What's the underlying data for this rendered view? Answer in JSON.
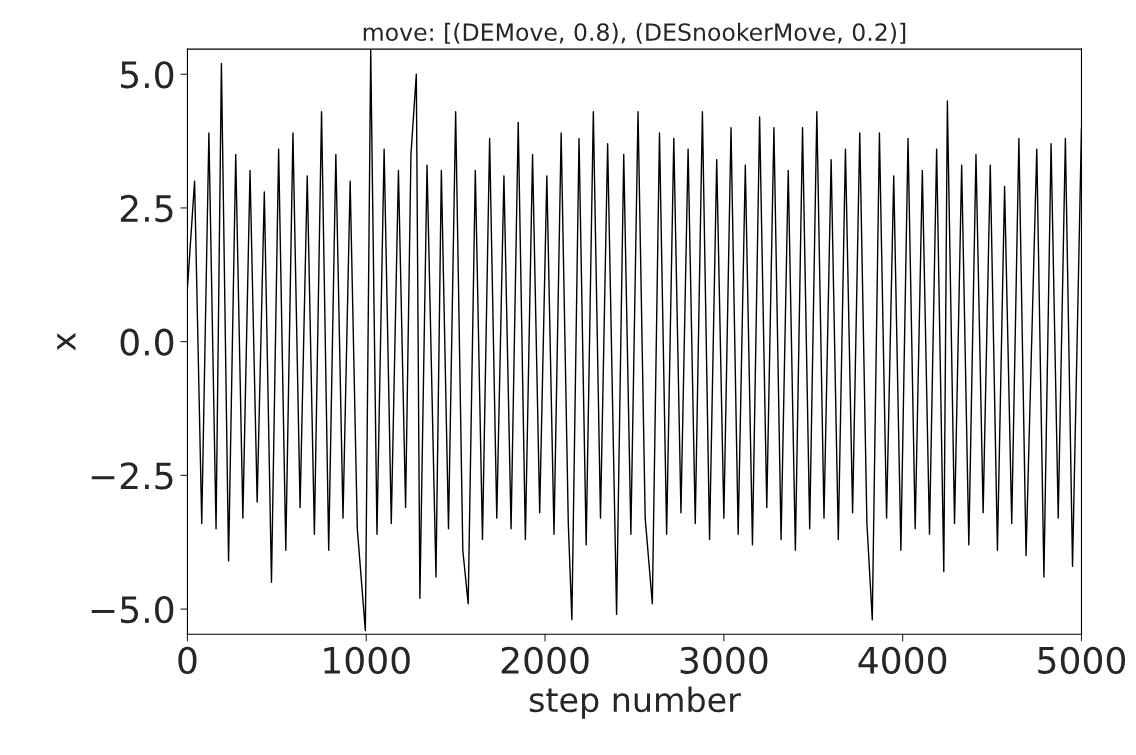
{
  "chart_data": {
    "type": "line",
    "title": "move: [(DEMove, 0.8), (DESnookerMove, 0.2)]",
    "xlabel": "step number",
    "ylabel": "x",
    "x": [
      0,
      40,
      80,
      120,
      160,
      190,
      230,
      270,
      310,
      350,
      390,
      430,
      470,
      510,
      550,
      590,
      630,
      670,
      710,
      750,
      790,
      830,
      870,
      910,
      950,
      995,
      1025,
      1060,
      1100,
      1140,
      1180,
      1220,
      1250,
      1280,
      1300,
      1340,
      1390,
      1420,
      1460,
      1500,
      1540,
      1570,
      1610,
      1650,
      1690,
      1730,
      1770,
      1810,
      1850,
      1890,
      1930,
      1970,
      2010,
      2050,
      2090,
      2130,
      2150,
      2190,
      2230,
      2270,
      2310,
      2350,
      2400,
      2440,
      2480,
      2520,
      2560,
      2600,
      2640,
      2680,
      2720,
      2760,
      2800,
      2840,
      2880,
      2920,
      2960,
      3000,
      3040,
      3080,
      3120,
      3160,
      3200,
      3240,
      3280,
      3320,
      3360,
      3400,
      3440,
      3480,
      3520,
      3560,
      3600,
      3640,
      3680,
      3720,
      3760,
      3800,
      3830,
      3870,
      3910,
      3950,
      3990,
      4030,
      4070,
      4110,
      4150,
      4190,
      4230,
      4250,
      4290,
      4330,
      4370,
      4410,
      4450,
      4490,
      4530,
      4570,
      4610,
      4650,
      4690,
      4750,
      4790,
      4830,
      4870,
      4910,
      4950,
      5000
    ],
    "values": [
      1.0,
      3.0,
      -3.4,
      3.9,
      -3.5,
      5.2,
      -4.1,
      3.5,
      -3.3,
      3.2,
      -3.0,
      2.8,
      -4.5,
      3.6,
      -3.9,
      3.9,
      -3.1,
      3.1,
      -3.6,
      4.3,
      -3.9,
      3.5,
      -3.3,
      3.0,
      -3.5,
      -5.4,
      5.45,
      -3.6,
      3.6,
      -3.4,
      3.2,
      -3.1,
      3.5,
      5.0,
      -4.8,
      3.3,
      -4.4,
      3.2,
      -3.5,
      4.3,
      -3.9,
      -4.9,
      3.2,
      -3.7,
      3.8,
      -3.3,
      3.1,
      -3.5,
      4.1,
      -3.7,
      3.5,
      -3.2,
      3.1,
      -3.6,
      3.9,
      -3.4,
      -5.2,
      3.8,
      -3.8,
      4.3,
      -3.3,
      3.7,
      -5.1,
      3.5,
      -3.6,
      4.3,
      -3.3,
      -4.9,
      3.9,
      -3.6,
      3.8,
      -3.2,
      3.6,
      -3.4,
      4.3,
      -3.7,
      3.4,
      -3.3,
      4.0,
      -3.6,
      3.3,
      -3.8,
      4.2,
      -3.1,
      4.0,
      -3.7,
      3.2,
      -3.9,
      4.0,
      -3.5,
      4.3,
      -3.3,
      3.4,
      -3.7,
      3.6,
      -3.2,
      3.9,
      -3.4,
      -5.2,
      3.9,
      -3.3,
      3.1,
      -3.9,
      3.8,
      -3.5,
      3.2,
      -3.6,
      3.6,
      -4.3,
      4.5,
      -3.4,
      3.3,
      -3.8,
      3.5,
      -3.2,
      3.3,
      -3.9,
      2.9,
      -3.4,
      3.8,
      -4.0,
      3.6,
      -4.4,
      3.7,
      -3.3,
      3.8,
      -4.2,
      4.0
    ],
    "color": "#000000",
    "xlim": [
      0,
      5000
    ],
    "ylim": [
      -5.47,
      5.47
    ],
    "xticks": [
      0,
      1000,
      2000,
      3000,
      4000,
      5000
    ],
    "yticks": [
      {
        "value": -5.0,
        "label": "−5.0"
      },
      {
        "value": -2.5,
        "label": "−2.5"
      },
      {
        "value": 0,
        "label": "0.0"
      },
      {
        "value": 2.5,
        "label": "2.5"
      },
      {
        "value": 5.0,
        "label": "5.0"
      }
    ],
    "grid": false,
    "legend": false
  }
}
